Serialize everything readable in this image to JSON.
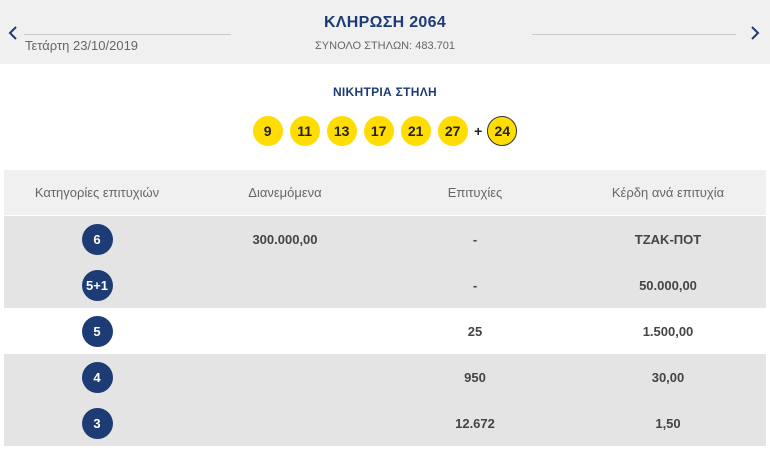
{
  "header": {
    "date": "Τετάρτη 23/10/2019",
    "draw_title": "ΚΛΗΡΩΣΗ 2064",
    "total_columns": "ΣΥΝΟΛΟ ΣΤΗΛΩΝ: 483.701",
    "prev_icon": "chevron-left-icon",
    "next_icon": "chevron-right-icon"
  },
  "winning": {
    "title": "ΝΙΚΗΤΡΙΑ ΣΤΗΛΗ",
    "numbers": [
      "9",
      "11",
      "13",
      "17",
      "21",
      "27"
    ],
    "plus": "+",
    "joker": "24"
  },
  "table": {
    "headers": [
      "Κατηγορίες επιτυχιών",
      "Διανεμόμενα",
      "Επιτυχίες",
      "Κέρδη ανά επιτυχία"
    ],
    "rows": [
      {
        "category": "6",
        "distributed": "300.000,00",
        "winners": "-",
        "prize": "ΤΖΑΚ-ΠΟΤ"
      },
      {
        "category": "5+1",
        "distributed": "",
        "winners": "-",
        "prize": "50.000,00"
      },
      {
        "category": "5",
        "distributed": "",
        "winners": "25",
        "prize": "1.500,00"
      },
      {
        "category": "4",
        "distributed": "",
        "winners": "950",
        "prize": "30,00"
      },
      {
        "category": "3",
        "distributed": "",
        "winners": "12.672",
        "prize": "1,50"
      }
    ]
  },
  "colors": {
    "ball": "#ffdd00",
    "brand_navy": "#1d3b74",
    "row_shade": "#e4e4e4",
    "header_bg": "#f0f0f0"
  }
}
